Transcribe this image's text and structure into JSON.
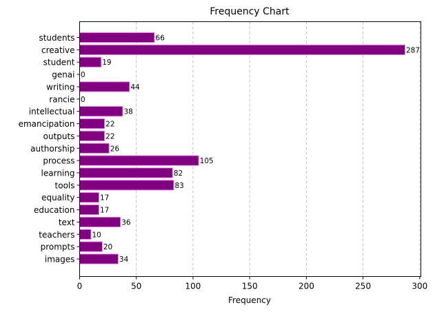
{
  "chart_data": {
    "type": "bar",
    "orientation": "horizontal",
    "title": "Frequency Chart",
    "xlabel": "Frequency",
    "ylabel": "",
    "xlim": [
      0,
      301
    ],
    "xticks": [
      0,
      50,
      100,
      150,
      200,
      250,
      300
    ],
    "grid": "vertical-dashed",
    "bar_color": "#800080",
    "bar_edge_color": "#e38ae3",
    "categories": [
      "students",
      "creative",
      "student",
      "genai",
      "writing",
      "rancie",
      "intellectual",
      "emancipation",
      "outputs",
      "authorship",
      "process",
      "learning",
      "tools",
      "equality",
      "education",
      "text",
      "teachers",
      "prompts",
      "images"
    ],
    "values": [
      66,
      287,
      19,
      0,
      44,
      0,
      38,
      22,
      22,
      26,
      105,
      82,
      83,
      17,
      17,
      36,
      10,
      20,
      34
    ]
  }
}
